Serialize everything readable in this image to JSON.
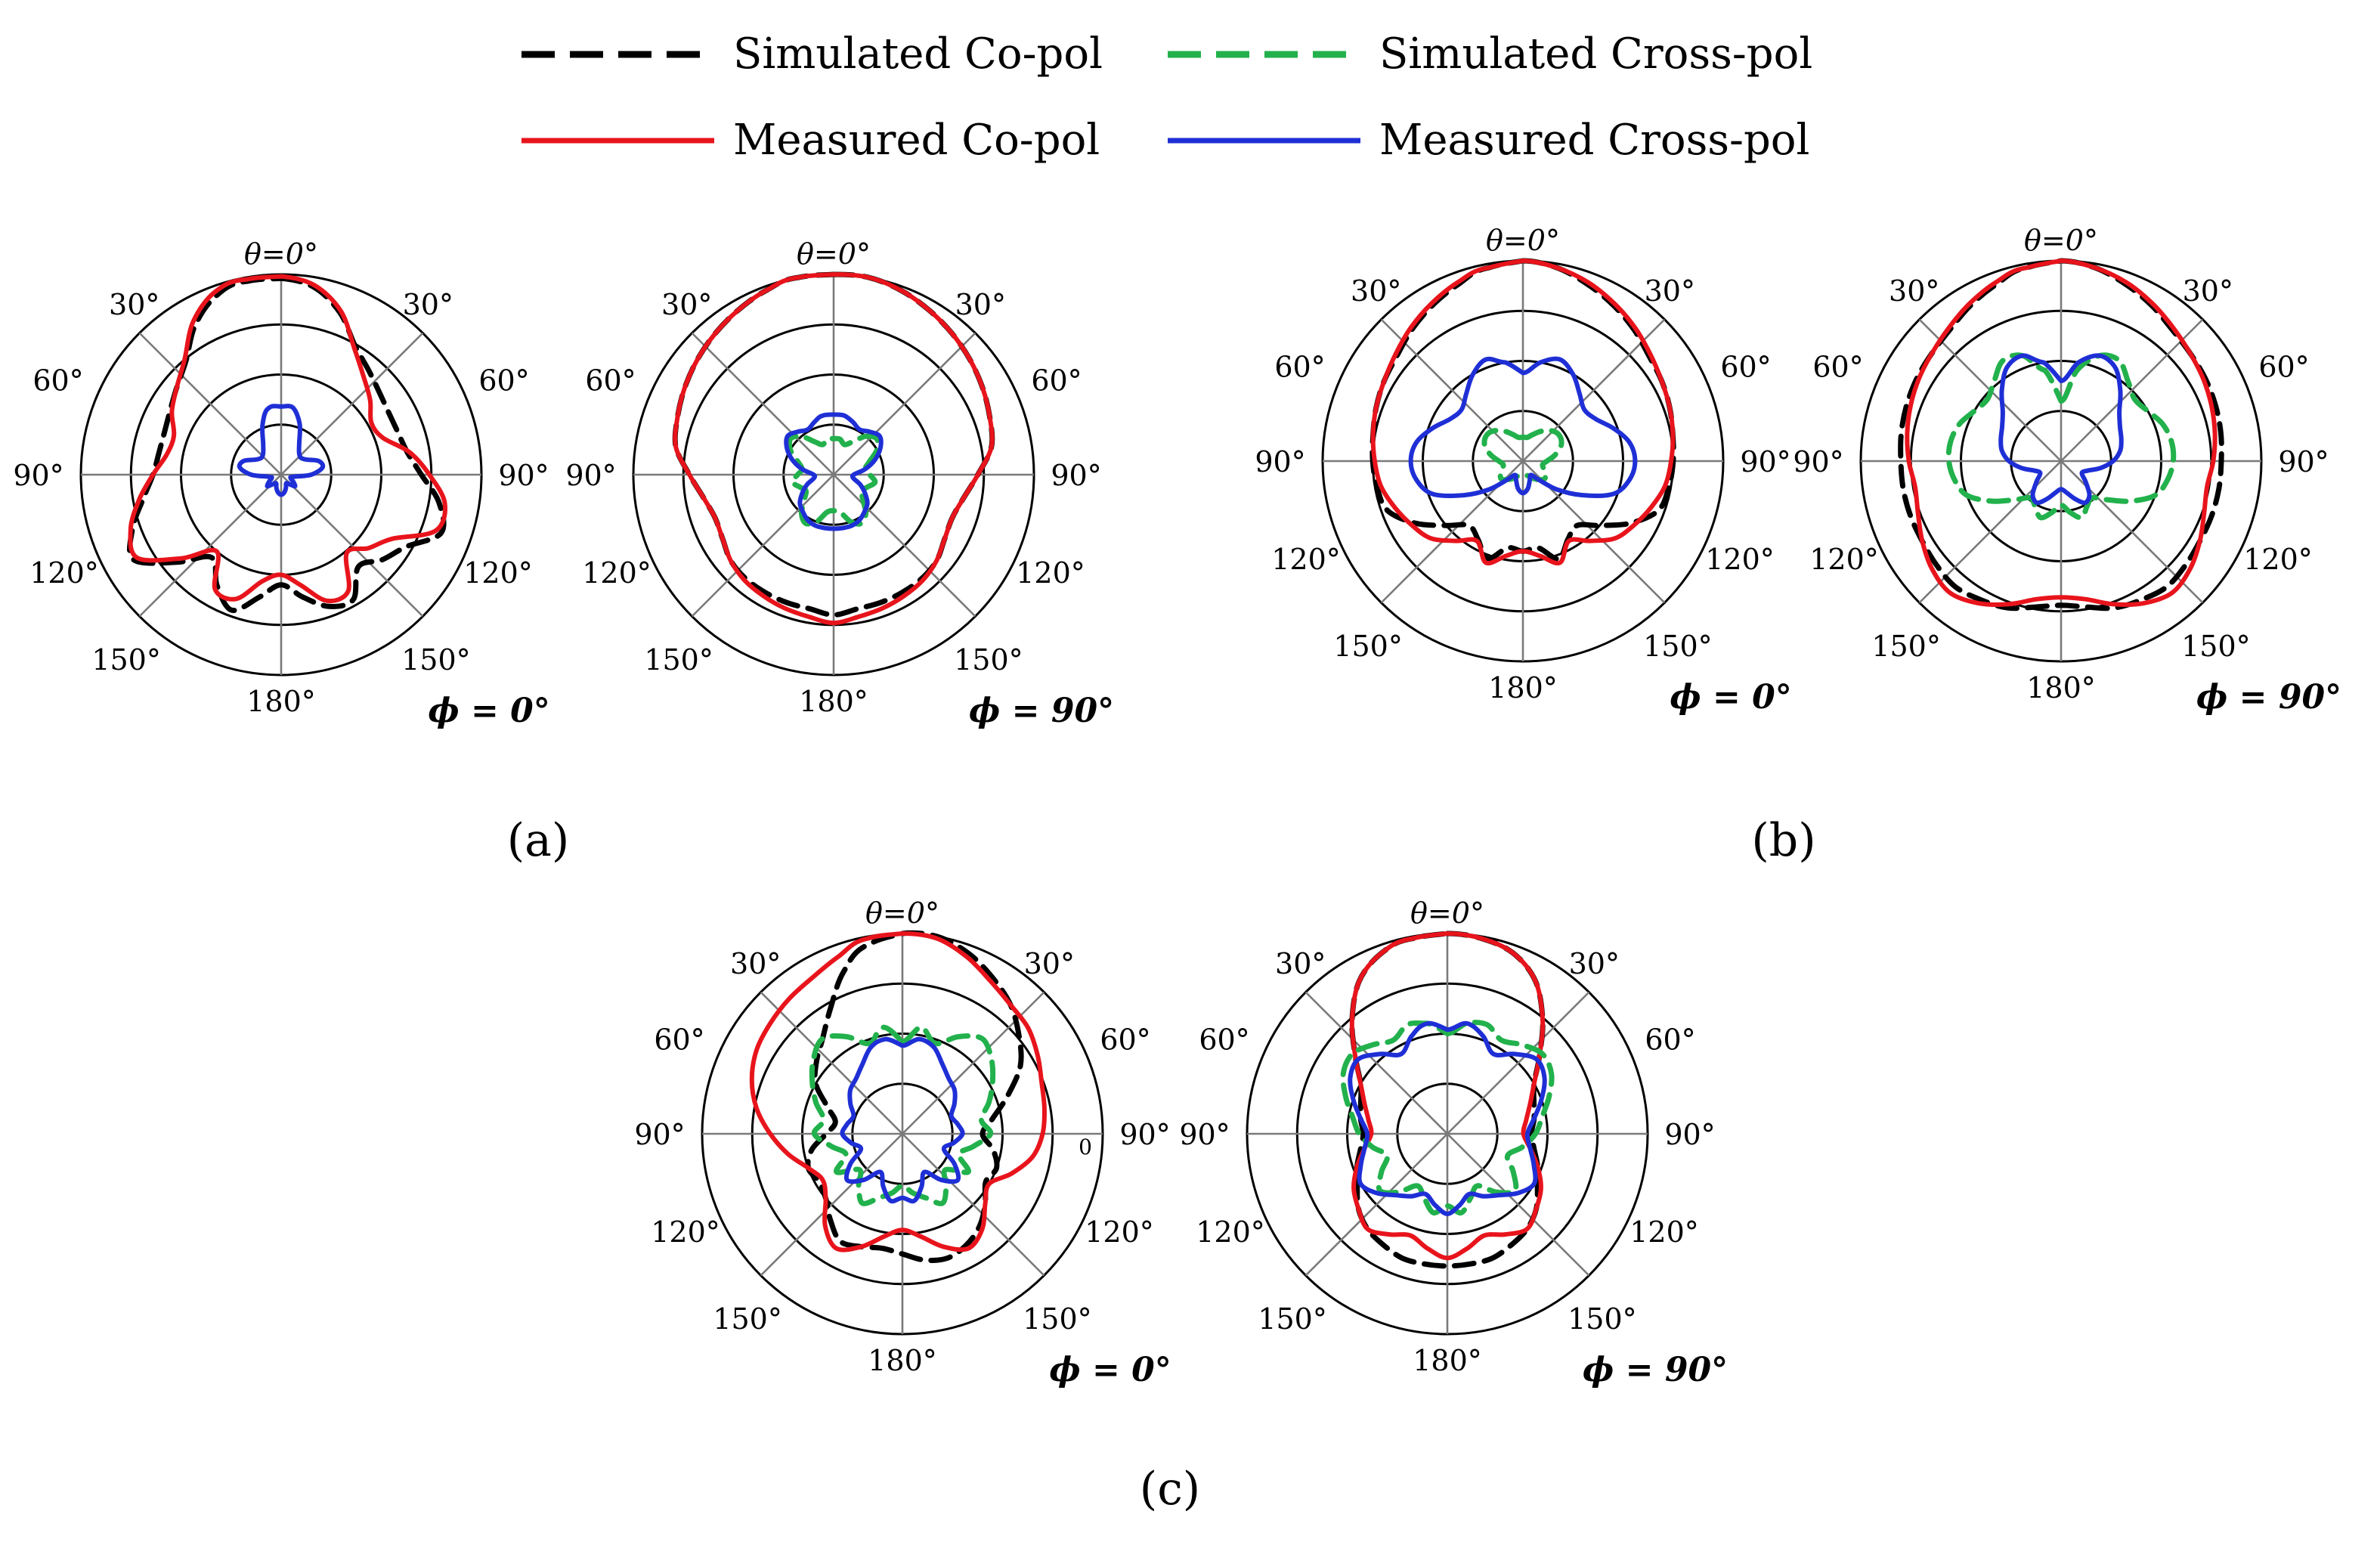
{
  "legend": [
    {
      "label": "Simulated Co-pol",
      "color": "#000000",
      "dash": true
    },
    {
      "label": "Simulated Cross-pol",
      "color": "#22b14c",
      "dash": true
    },
    {
      "label": "Measured Co-pol",
      "color": "#e8141c",
      "dash": false
    },
    {
      "label": "Measured Cross-pol",
      "color": "#1f2fd6",
      "dash": false
    }
  ],
  "angle_labels": {
    "theta0": "θ=0°",
    "top_left": "30°",
    "top_right": "30°",
    "upper_left": "60°",
    "upper_right": "60°",
    "mid_left": "90°",
    "mid_right": "90°",
    "lower_left": "120°",
    "lower_right": "120°",
    "bottom_left": "150°",
    "bottom_right": "150°",
    "bottom": "180°"
  },
  "extra_text": "0",
  "panels": [
    {
      "label": "(a)",
      "charts": [
        {
          "phi": "ϕ = 0°"
        },
        {
          "phi": "ϕ = 90°"
        }
      ]
    },
    {
      "label": "(b)",
      "charts": [
        {
          "phi": "ϕ = 0°"
        },
        {
          "phi": "ϕ = 90°"
        }
      ]
    },
    {
      "label": "(c)",
      "charts": [
        {
          "phi": "ϕ = 0°"
        },
        {
          "phi": "ϕ = 90°"
        }
      ]
    }
  ],
  "chart_data": [
    {
      "type": "polar-line",
      "panel": "(a)",
      "cut": "ϕ = 0°",
      "rings": 4,
      "r_range": [
        0,
        1
      ],
      "series": [
        {
          "name": "Simulated Co-pol",
          "samples": 36,
          "r": [
            0.98,
            0.95,
            0.86,
            0.74,
            0.68,
            0.64,
            0.62,
            0.62,
            0.64,
            0.7,
            0.8,
            0.85,
            0.72,
            0.66,
            0.6,
            0.72,
            0.7,
            0.62,
            0.55,
            0.62,
            0.72,
            0.64,
            0.54,
            0.68,
            0.85,
            0.79,
            0.7,
            0.64,
            0.62,
            0.62,
            0.64,
            0.68,
            0.74,
            0.86,
            0.95,
            0.98
          ]
        },
        {
          "name": "Measured Co-pol",
          "samples": 36,
          "r": [
            0.99,
            0.96,
            0.87,
            0.73,
            0.64,
            0.58,
            0.52,
            0.54,
            0.65,
            0.74,
            0.83,
            0.82,
            0.64,
            0.57,
            0.51,
            0.67,
            0.67,
            0.56,
            0.5,
            0.54,
            0.66,
            0.66,
            0.5,
            0.65,
            0.83,
            0.8,
            0.72,
            0.64,
            0.58,
            0.57,
            0.63,
            0.68,
            0.75,
            0.88,
            0.97,
            0.99
          ]
        },
        {
          "name": "Measured Cross-pol",
          "samples": 36,
          "r": [
            0.34,
            0.34,
            0.27,
            0.18,
            0.14,
            0.13,
            0.15,
            0.2,
            0.21,
            0.15,
            0.06,
            0.05,
            0.07,
            0.09,
            0.06,
            0.05,
            0.07,
            0.09,
            0.1,
            0.09,
            0.07,
            0.05,
            0.06,
            0.09,
            0.07,
            0.05,
            0.06,
            0.15,
            0.21,
            0.2,
            0.15,
            0.13,
            0.14,
            0.18,
            0.27,
            0.34
          ]
        }
      ]
    },
    {
      "type": "polar-line",
      "panel": "(a)",
      "cut": "ϕ = 90°",
      "rings": 4,
      "r_range": [
        0,
        1
      ],
      "series": [
        {
          "name": "Simulated Co-pol",
          "samples": 36,
          "r": [
            1.0,
            1.0,
            0.98,
            0.95,
            0.92,
            0.89,
            0.86,
            0.83,
            0.8,
            0.72,
            0.66,
            0.63,
            0.64,
            0.67,
            0.68,
            0.68,
            0.68,
            0.68,
            0.7,
            0.68,
            0.68,
            0.68,
            0.68,
            0.67,
            0.64,
            0.63,
            0.66,
            0.72,
            0.8,
            0.83,
            0.86,
            0.89,
            0.92,
            0.95,
            0.98,
            1.0
          ]
        },
        {
          "name": "Measured Co-pol",
          "samples": 36,
          "r": [
            1.0,
            1.0,
            0.98,
            0.95,
            0.92,
            0.89,
            0.86,
            0.83,
            0.8,
            0.72,
            0.66,
            0.63,
            0.64,
            0.67,
            0.69,
            0.7,
            0.71,
            0.72,
            0.74,
            0.72,
            0.71,
            0.7,
            0.69,
            0.67,
            0.64,
            0.63,
            0.66,
            0.72,
            0.8,
            0.83,
            0.86,
            0.89,
            0.92,
            0.95,
            0.98,
            1.0
          ]
        },
        {
          "name": "Simulated Cross-pol",
          "samples": 36,
          "r": [
            0.18,
            0.18,
            0.16,
            0.19,
            0.25,
            0.28,
            0.25,
            0.19,
            0.16,
            0.18,
            0.21,
            0.18,
            0.16,
            0.19,
            0.25,
            0.28,
            0.25,
            0.19,
            0.18,
            0.19,
            0.25,
            0.28,
            0.25,
            0.19,
            0.16,
            0.18,
            0.21,
            0.18,
            0.16,
            0.19,
            0.25,
            0.28,
            0.25,
            0.19,
            0.16,
            0.18
          ]
        },
        {
          "name": "Measured Cross-pol",
          "samples": 36,
          "r": [
            0.3,
            0.3,
            0.28,
            0.26,
            0.28,
            0.3,
            0.27,
            0.22,
            0.16,
            0.1,
            0.1,
            0.14,
            0.18,
            0.22,
            0.24,
            0.26,
            0.27,
            0.27,
            0.27,
            0.27,
            0.27,
            0.26,
            0.24,
            0.22,
            0.18,
            0.14,
            0.1,
            0.1,
            0.16,
            0.22,
            0.27,
            0.3,
            0.28,
            0.26,
            0.28,
            0.3
          ]
        }
      ]
    },
    {
      "type": "polar-line",
      "panel": "(b)",
      "cut": "ϕ = 0°",
      "rings": 4,
      "r_range": [
        0,
        1
      ],
      "series": [
        {
          "name": "Simulated Co-pol",
          "samples": 36,
          "r": [
            1.0,
            0.98,
            0.94,
            0.9,
            0.86,
            0.82,
            0.8,
            0.78,
            0.76,
            0.75,
            0.74,
            0.72,
            0.62,
            0.5,
            0.42,
            0.45,
            0.52,
            0.44,
            0.45,
            0.44,
            0.52,
            0.45,
            0.42,
            0.5,
            0.62,
            0.72,
            0.74,
            0.75,
            0.76,
            0.78,
            0.8,
            0.82,
            0.86,
            0.9,
            0.94,
            0.98
          ]
        },
        {
          "name": "Measured Co-pol",
          "samples": 36,
          "r": [
            1.0,
            0.98,
            0.95,
            0.91,
            0.87,
            0.83,
            0.8,
            0.78,
            0.76,
            0.74,
            0.72,
            0.68,
            0.64,
            0.6,
            0.52,
            0.46,
            0.54,
            0.48,
            0.45,
            0.48,
            0.54,
            0.46,
            0.52,
            0.6,
            0.64,
            0.68,
            0.72,
            0.74,
            0.76,
            0.78,
            0.8,
            0.83,
            0.87,
            0.91,
            0.95,
            0.98
          ]
        },
        {
          "name": "Simulated Cross-pol",
          "samples": 36,
          "r": [
            0.12,
            0.12,
            0.14,
            0.17,
            0.2,
            0.22,
            0.22,
            0.2,
            0.16,
            0.12,
            0.1,
            0.11,
            0.13,
            0.14,
            0.12,
            0.1,
            0.08,
            0.07,
            0.07,
            0.07,
            0.08,
            0.1,
            0.12,
            0.14,
            0.13,
            0.11,
            0.1,
            0.12,
            0.16,
            0.2,
            0.22,
            0.22,
            0.2,
            0.17,
            0.14,
            0.12
          ]
        },
        {
          "name": "Measured Cross-pol",
          "samples": 36,
          "r": [
            0.44,
            0.5,
            0.54,
            0.5,
            0.44,
            0.4,
            0.42,
            0.48,
            0.54,
            0.56,
            0.54,
            0.48,
            0.34,
            0.22,
            0.12,
            0.08,
            0.1,
            0.14,
            0.16,
            0.14,
            0.1,
            0.08,
            0.12,
            0.22,
            0.34,
            0.48,
            0.54,
            0.56,
            0.54,
            0.48,
            0.42,
            0.4,
            0.44,
            0.5,
            0.54,
            0.5
          ]
        }
      ]
    },
    {
      "type": "polar-line",
      "panel": "(b)",
      "cut": "ϕ = 90°",
      "rings": 4,
      "r_range": [
        0,
        1
      ],
      "series": [
        {
          "name": "Simulated Co-pol",
          "samples": 36,
          "r": [
            1.0,
            0.98,
            0.94,
            0.9,
            0.86,
            0.84,
            0.83,
            0.82,
            0.81,
            0.8,
            0.8,
            0.8,
            0.8,
            0.81,
            0.82,
            0.8,
            0.78,
            0.74,
            0.72,
            0.74,
            0.78,
            0.8,
            0.82,
            0.81,
            0.8,
            0.8,
            0.8,
            0.8,
            0.81,
            0.82,
            0.83,
            0.84,
            0.86,
            0.9,
            0.94,
            0.98
          ]
        },
        {
          "name": "Measured Co-pol",
          "samples": 36,
          "r": [
            1.0,
            0.98,
            0.95,
            0.91,
            0.87,
            0.84,
            0.82,
            0.8,
            0.78,
            0.76,
            0.74,
            0.76,
            0.8,
            0.84,
            0.86,
            0.82,
            0.76,
            0.7,
            0.68,
            0.7,
            0.76,
            0.82,
            0.86,
            0.84,
            0.8,
            0.76,
            0.74,
            0.76,
            0.78,
            0.8,
            0.82,
            0.84,
            0.87,
            0.91,
            0.95,
            0.98
          ]
        },
        {
          "name": "Simulated Cross-pol",
          "samples": 36,
          "r": [
            0.3,
            0.46,
            0.56,
            0.58,
            0.52,
            0.48,
            0.5,
            0.54,
            0.56,
            0.56,
            0.54,
            0.5,
            0.4,
            0.3,
            0.24,
            0.26,
            0.3,
            0.26,
            0.22,
            0.26,
            0.3,
            0.26,
            0.24,
            0.3,
            0.4,
            0.5,
            0.54,
            0.56,
            0.56,
            0.54,
            0.5,
            0.48,
            0.52,
            0.58,
            0.56,
            0.46
          ]
        },
        {
          "name": "Measured Cross-pol",
          "samples": 36,
          "r": [
            0.4,
            0.5,
            0.56,
            0.54,
            0.46,
            0.38,
            0.34,
            0.32,
            0.3,
            0.26,
            0.2,
            0.14,
            0.12,
            0.16,
            0.22,
            0.24,
            0.2,
            0.16,
            0.14,
            0.16,
            0.2,
            0.24,
            0.22,
            0.16,
            0.12,
            0.14,
            0.2,
            0.26,
            0.3,
            0.32,
            0.34,
            0.38,
            0.46,
            0.54,
            0.56,
            0.5
          ]
        }
      ]
    },
    {
      "type": "polar-line",
      "panel": "(c)",
      "cut": "ϕ = 0°",
      "rings": 4,
      "r_range": [
        0,
        1
      ],
      "series": [
        {
          "name": "Simulated Co-pol",
          "samples": 36,
          "r": [
            1.0,
            1.0,
            0.96,
            0.9,
            0.84,
            0.76,
            0.68,
            0.56,
            0.46,
            0.4,
            0.46,
            0.5,
            0.48,
            0.54,
            0.6,
            0.64,
            0.66,
            0.64,
            0.6,
            0.58,
            0.6,
            0.62,
            0.56,
            0.5,
            0.48,
            0.5,
            0.46,
            0.38,
            0.34,
            0.4,
            0.5,
            0.56,
            0.62,
            0.72,
            0.86,
            0.96
          ]
        },
        {
          "name": "Measured Co-pol",
          "samples": 36,
          "r": [
            1.0,
            0.99,
            0.94,
            0.88,
            0.84,
            0.82,
            0.78,
            0.74,
            0.72,
            0.7,
            0.66,
            0.58,
            0.5,
            0.54,
            0.62,
            0.66,
            0.6,
            0.52,
            0.48,
            0.52,
            0.6,
            0.66,
            0.6,
            0.5,
            0.46,
            0.5,
            0.58,
            0.66,
            0.74,
            0.8,
            0.84,
            0.86,
            0.88,
            0.9,
            0.94,
            0.99
          ]
        },
        {
          "name": "Simulated Cross-pol",
          "samples": 36,
          "r": [
            0.46,
            0.54,
            0.48,
            0.56,
            0.62,
            0.58,
            0.52,
            0.46,
            0.4,
            0.44,
            0.36,
            0.3,
            0.38,
            0.28,
            0.34,
            0.4,
            0.34,
            0.3,
            0.26,
            0.3,
            0.34,
            0.4,
            0.34,
            0.28,
            0.38,
            0.3,
            0.36,
            0.44,
            0.4,
            0.46,
            0.52,
            0.58,
            0.62,
            0.56,
            0.48,
            0.54
          ]
        },
        {
          "name": "Measured Cross-pol",
          "samples": 36,
          "r": [
            0.44,
            0.48,
            0.46,
            0.4,
            0.36,
            0.34,
            0.3,
            0.26,
            0.28,
            0.3,
            0.26,
            0.22,
            0.3,
            0.36,
            0.3,
            0.22,
            0.28,
            0.34,
            0.32,
            0.34,
            0.28,
            0.22,
            0.3,
            0.36,
            0.3,
            0.22,
            0.26,
            0.3,
            0.28,
            0.26,
            0.3,
            0.34,
            0.36,
            0.4,
            0.46,
            0.48
          ]
        }
      ]
    },
    {
      "type": "polar-line",
      "panel": "(c)",
      "cut": "ϕ = 90°",
      "rings": 4,
      "r_range": [
        0,
        1
      ],
      "series": [
        {
          "name": "Simulated Co-pol",
          "samples": 36,
          "r": [
            1.0,
            0.99,
            0.96,
            0.88,
            0.74,
            0.6,
            0.5,
            0.46,
            0.44,
            0.42,
            0.44,
            0.48,
            0.52,
            0.58,
            0.62,
            0.64,
            0.66,
            0.66,
            0.66,
            0.66,
            0.66,
            0.64,
            0.62,
            0.58,
            0.52,
            0.48,
            0.44,
            0.42,
            0.44,
            0.46,
            0.5,
            0.6,
            0.74,
            0.88,
            0.96,
            0.99
          ]
        },
        {
          "name": "Measured Co-pol",
          "samples": 36,
          "r": [
            1.0,
            0.99,
            0.96,
            0.88,
            0.74,
            0.6,
            0.5,
            0.44,
            0.4,
            0.38,
            0.42,
            0.48,
            0.54,
            0.58,
            0.62,
            0.58,
            0.54,
            0.58,
            0.62,
            0.58,
            0.54,
            0.58,
            0.62,
            0.58,
            0.54,
            0.48,
            0.42,
            0.38,
            0.4,
            0.44,
            0.5,
            0.6,
            0.74,
            0.88,
            0.96,
            0.99
          ]
        },
        {
          "name": "Simulated Cross-pol",
          "samples": 36,
          "r": [
            0.5,
            0.56,
            0.58,
            0.54,
            0.58,
            0.62,
            0.6,
            0.54,
            0.48,
            0.44,
            0.38,
            0.32,
            0.38,
            0.44,
            0.38,
            0.3,
            0.34,
            0.4,
            0.36,
            0.4,
            0.34,
            0.3,
            0.38,
            0.44,
            0.38,
            0.32,
            0.38,
            0.44,
            0.48,
            0.54,
            0.6,
            0.62,
            0.58,
            0.54,
            0.58,
            0.56
          ]
        },
        {
          "name": "Measured Cross-pol",
          "samples": 36,
          "r": [
            0.52,
            0.56,
            0.52,
            0.46,
            0.52,
            0.58,
            0.56,
            0.5,
            0.44,
            0.4,
            0.42,
            0.46,
            0.5,
            0.46,
            0.4,
            0.36,
            0.32,
            0.36,
            0.4,
            0.36,
            0.32,
            0.36,
            0.4,
            0.46,
            0.5,
            0.46,
            0.42,
            0.4,
            0.44,
            0.5,
            0.56,
            0.58,
            0.52,
            0.46,
            0.52,
            0.56
          ]
        }
      ]
    }
  ]
}
